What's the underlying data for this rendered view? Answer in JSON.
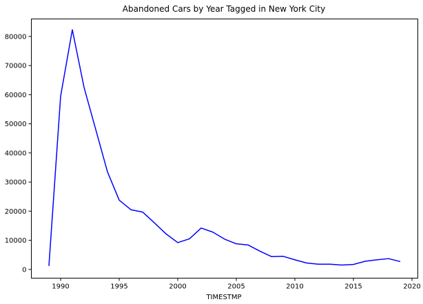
{
  "chart_data": {
    "type": "line",
    "title": "Abandoned Cars by Year Tagged in New York City",
    "xlabel": "TIMESTMP",
    "ylabel": "",
    "xlim": [
      1987.5,
      2020.5
    ],
    "ylim": [
      -3000,
      86000
    ],
    "x_ticks": [
      1990,
      1995,
      2000,
      2005,
      2010,
      2015,
      2020
    ],
    "y_ticks": [
      0,
      10000,
      20000,
      30000,
      40000,
      50000,
      60000,
      70000,
      80000
    ],
    "grid": false,
    "line_color": "#0000ff",
    "series": [
      {
        "x": [
          1989,
          1990,
          1991,
          1992,
          1993,
          1994,
          1995,
          1996,
          1997,
          1998,
          1999,
          2000,
          2001,
          2002,
          2003,
          2004,
          2005,
          2006,
          2007,
          2008,
          2009,
          2010,
          2011,
          2012,
          2013,
          2014,
          2015,
          2016,
          2017,
          2018,
          2019
        ],
        "values": [
          1200,
          59500,
          82300,
          62500,
          48000,
          33500,
          23800,
          20500,
          19700,
          16000,
          12200,
          9200,
          10500,
          14200,
          12800,
          10400,
          8800,
          8400,
          6300,
          4400,
          4500,
          3300,
          2200,
          1800,
          1800,
          1500,
          1700,
          2800,
          3300,
          3700,
          2700
        ]
      }
    ]
  }
}
